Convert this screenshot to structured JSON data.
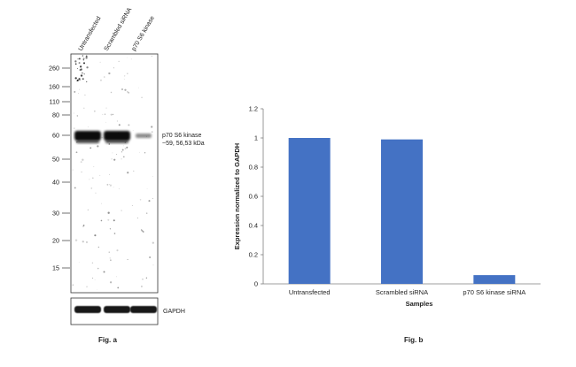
{
  "fig_a": {
    "caption": "Fig. a",
    "lane_labels": [
      "Untransfected",
      "Scrambled siRNA",
      "p70 S6 kinase"
    ],
    "mw_markers": [
      "260",
      "160",
      "110",
      "80",
      "60",
      "50",
      "40",
      "30",
      "20",
      "15"
    ],
    "band_label_line1": "p70 S6 kinase",
    "band_label_line2": "~59, 56,53 kDa",
    "loading_control_label": "GAPDH",
    "band_intensity": [
      1.0,
      1.0,
      0.15
    ],
    "gapdh_intensity": [
      1.0,
      1.0,
      1.0
    ]
  },
  "fig_b": {
    "caption": "Fig. b"
  },
  "chart_data": {
    "type": "bar",
    "categories": [
      "Untransfected",
      "Scrambled siRNA",
      "p70 S6 kinase siRNA"
    ],
    "values": [
      1.0,
      0.99,
      0.06
    ],
    "xlabel": "Samples",
    "ylabel": "Expression normalized to GAPDH",
    "ylim": [
      0,
      1.2
    ],
    "yticks": [
      "0",
      "0.2",
      "0.4",
      "0.6",
      "0.8",
      "1",
      "1.2"
    ],
    "bar_color": "#4472C4",
    "grid": false,
    "legend": "none"
  }
}
